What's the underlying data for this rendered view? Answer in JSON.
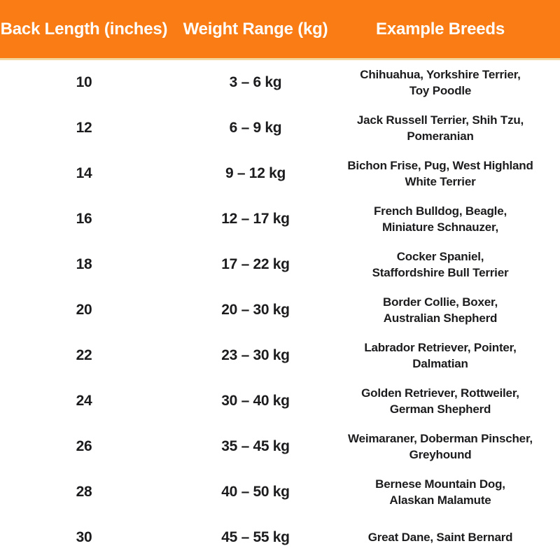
{
  "colors": {
    "header_bg": "#fa7c14",
    "header_text": "#ffffff",
    "header_border": "#f2d7a0",
    "body_bg": "#ffffff",
    "body_text": "#1c1c1e"
  },
  "header": {
    "columns": [
      {
        "label": "Back Length (inches)"
      },
      {
        "label": "Weight Range (kg)"
      },
      {
        "label": "Example Breeds"
      }
    ]
  },
  "rows": [
    {
      "back_length": "10",
      "weight_range": "3 – 6 kg",
      "breeds": "Chihuahua,  Yorkshire Terrier,\nToy Poodle"
    },
    {
      "back_length": "12",
      "weight_range": "6 – 9 kg",
      "breeds": "Jack Russell Terrier, Shih Tzu,\nPomeranian"
    },
    {
      "back_length": "14",
      "weight_range": "9 – 12 kg",
      "breeds": "Bichon Frise, Pug, West Highland\nWhite Terrier"
    },
    {
      "back_length": "16",
      "weight_range": "12 – 17 kg",
      "breeds": "French Bulldog, Beagle,\nMiniature Schnauzer,"
    },
    {
      "back_length": "18",
      "weight_range": "17 – 22 kg",
      "breeds": "Cocker Spaniel,\nStaffordshire Bull Terrier"
    },
    {
      "back_length": "20",
      "weight_range": "20 – 30 kg",
      "breeds": "Border Collie, Boxer,\nAustralian Shepherd"
    },
    {
      "back_length": "22",
      "weight_range": "23 – 30 kg",
      "breeds": "Labrador Retriever, Pointer,\nDalmatian"
    },
    {
      "back_length": "24",
      "weight_range": "30 – 40 kg",
      "breeds": "Golden Retriever, Rottweiler,\nGerman Shepherd"
    },
    {
      "back_length": "26",
      "weight_range": "35 – 45 kg",
      "breeds": "Weimaraner, Doberman Pinscher,\nGreyhound"
    },
    {
      "back_length": "28",
      "weight_range": "40 – 50 kg",
      "breeds": "Bernese Mountain Dog,\nAlaskan Malamute"
    },
    {
      "back_length": "30",
      "weight_range": "45 – 55 kg",
      "breeds": "Great Dane, Saint Bernard"
    }
  ],
  "chart_data": {
    "type": "table",
    "title": "Dog back length to weight range and example breeds",
    "columns": [
      "Back Length (inches)",
      "Weight Range (kg)",
      "Example Breeds"
    ],
    "rows": [
      [
        "10",
        "3 – 6 kg",
        "Chihuahua, Yorkshire Terrier, Toy Poodle"
      ],
      [
        "12",
        "6 – 9 kg",
        "Jack Russell Terrier, Shih Tzu, Pomeranian"
      ],
      [
        "14",
        "9 – 12 kg",
        "Bichon Frise, Pug, West Highland White Terrier"
      ],
      [
        "16",
        "12 – 17 kg",
        "French Bulldog, Beagle, Miniature Schnauzer,"
      ],
      [
        "18",
        "17 – 22 kg",
        "Cocker Spaniel, Staffordshire Bull Terrier"
      ],
      [
        "20",
        "20 – 30 kg",
        "Border Collie, Boxer, Australian Shepherd"
      ],
      [
        "22",
        "23 – 30 kg",
        "Labrador Retriever, Pointer, Dalmatian"
      ],
      [
        "24",
        "30 – 40 kg",
        "Golden Retriever, Rottweiler, German Shepherd"
      ],
      [
        "26",
        "35 – 45 kg",
        "Weimaraner, Doberman Pinscher, Greyhound"
      ],
      [
        "28",
        "40 – 50 kg",
        "Bernese Mountain Dog, Alaskan Malamute"
      ],
      [
        "30",
        "45 – 55 kg",
        "Great Dane, Saint Bernard"
      ]
    ],
    "layout": {
      "header_background": "#fa7c14",
      "header_text_color": "#ffffff",
      "grid": false
    }
  }
}
